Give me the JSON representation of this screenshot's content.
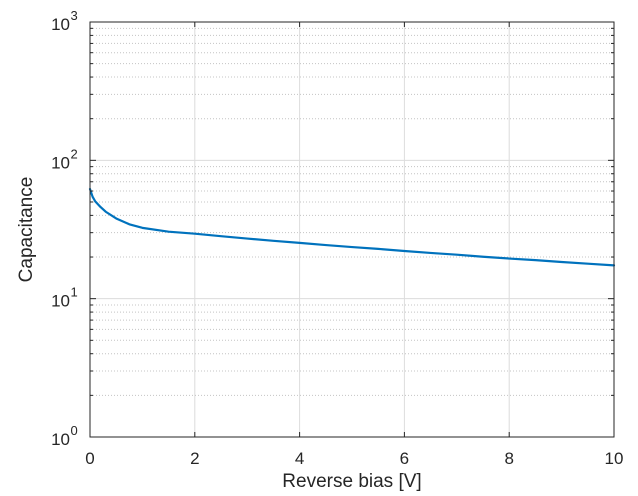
{
  "chart_data": {
    "type": "line",
    "title": "",
    "xlabel": "Reverse bias [V]",
    "ylabel": "Capacitance",
    "xlim": [
      0,
      10
    ],
    "ylim": [
      1,
      1000
    ],
    "yscale": "log",
    "grid": true,
    "x_ticks": [
      {
        "value": 0,
        "label": "0"
      },
      {
        "value": 2,
        "label": "2"
      },
      {
        "value": 4,
        "label": "4"
      },
      {
        "value": 6,
        "label": "6"
      },
      {
        "value": 8,
        "label": "8"
      },
      {
        "value": 10,
        "label": "10"
      }
    ],
    "y_ticks": [
      {
        "value": 1,
        "base": "10",
        "exp": "0"
      },
      {
        "value": 10,
        "base": "10",
        "exp": "1"
      },
      {
        "value": 100,
        "base": "10",
        "exp": "2"
      },
      {
        "value": 1000,
        "base": "10",
        "exp": "3"
      }
    ],
    "series": [
      {
        "color": "#0072bd",
        "x": [
          0,
          0.05,
          0.1,
          0.2,
          0.3,
          0.5,
          0.75,
          1,
          1.5,
          2,
          2.5,
          3,
          3.5,
          4,
          4.5,
          5,
          5.5,
          6,
          6.5,
          7,
          7.5,
          8,
          8.5,
          9,
          9.5,
          10
        ],
        "y": [
          62,
          54.5,
          50.5,
          46,
          42.5,
          38,
          34.5,
          32.5,
          30.5,
          29.5,
          28.3,
          27.2,
          26.2,
          25.3,
          24.4,
          23.6,
          22.9,
          22.1,
          21.4,
          20.8,
          20.1,
          19.5,
          19.0,
          18.4,
          17.9,
          17.4
        ]
      }
    ]
  }
}
